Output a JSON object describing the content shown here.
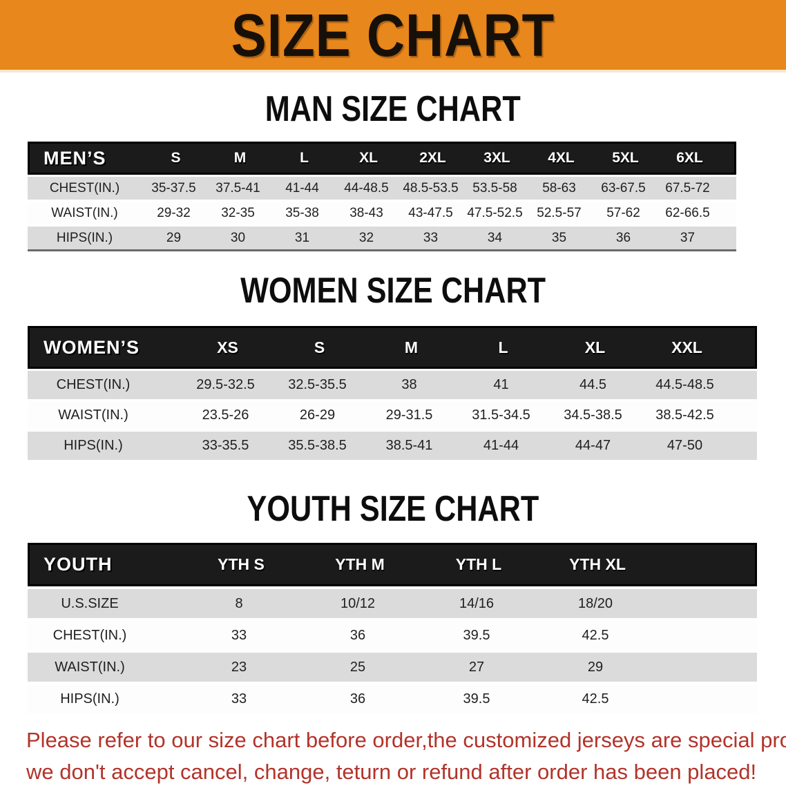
{
  "banner": {
    "title": "SIZE CHART",
    "bg_color": "#E8871C"
  },
  "sections": [
    {
      "heading": "MAN SIZE CHART",
      "table": {
        "label": "MEN’S",
        "columns": [
          "S",
          "M",
          "L",
          "XL",
          "2XL",
          "3XL",
          "4XL",
          "5XL",
          "6XL"
        ],
        "rows": [
          {
            "label": "CHEST(IN.)",
            "values": [
              "35-37.5",
              "37.5-41",
              "41-44",
              "44-48.5",
              "48.5-53.5",
              "53.5-58",
              "58-63",
              "63-67.5",
              "67.5-72"
            ]
          },
          {
            "label": "WAIST(IN.)",
            "values": [
              "29-32",
              "32-35",
              "35-38",
              "38-43",
              "43-47.5",
              "47.5-52.5",
              "52.5-57",
              "57-62",
              "62-66.5"
            ]
          },
          {
            "label": "HIPS(IN.)",
            "values": [
              "29",
              "30",
              "31",
              "32",
              "33",
              "34",
              "35",
              "36",
              "37"
            ]
          }
        ]
      }
    },
    {
      "heading": "WOMEN SIZE CHART",
      "table": {
        "label": "WOMEN’S",
        "columns": [
          "XS",
          "S",
          "M",
          "L",
          "XL",
          "XXL"
        ],
        "rows": [
          {
            "label": "CHEST(IN.)",
            "values": [
              "29.5-32.5",
              "32.5-35.5",
              "38",
              "41",
              "44.5",
              "44.5-48.5"
            ]
          },
          {
            "label": "WAIST(IN.)",
            "values": [
              "23.5-26",
              "26-29",
              "29-31.5",
              "31.5-34.5",
              "34.5-38.5",
              "38.5-42.5"
            ]
          },
          {
            "label": "HIPS(IN.)",
            "values": [
              "33-35.5",
              "35.5-38.5",
              "38.5-41",
              "41-44",
              "44-47",
              "47-50"
            ]
          }
        ]
      }
    },
    {
      "heading": "YOUTH SIZE CHART",
      "table": {
        "label": "YOUTH",
        "columns": [
          "YTH S",
          "YTH M",
          "YTH L",
          "YTH XL"
        ],
        "rows": [
          {
            "label": "U.S.SIZE",
            "values": [
              "8",
              "10/12",
              "14/16",
              "18/20"
            ]
          },
          {
            "label": "CHEST(IN.)",
            "values": [
              "33",
              "36",
              "39.5",
              "42.5"
            ]
          },
          {
            "label": "WAIST(IN.)",
            "values": [
              "23",
              "25",
              "27",
              "29"
            ]
          },
          {
            "label": "HIPS(IN.)",
            "values": [
              "33",
              "36",
              "39.5",
              "42.5"
            ]
          }
        ]
      }
    }
  ],
  "footer": {
    "color": "#B2332A",
    "lines": [
      "Please refer to our size chart before order,the customized jerseys are special products,",
      "we don't accept cancel, change, teturn or refund after order has been placed!"
    ]
  }
}
